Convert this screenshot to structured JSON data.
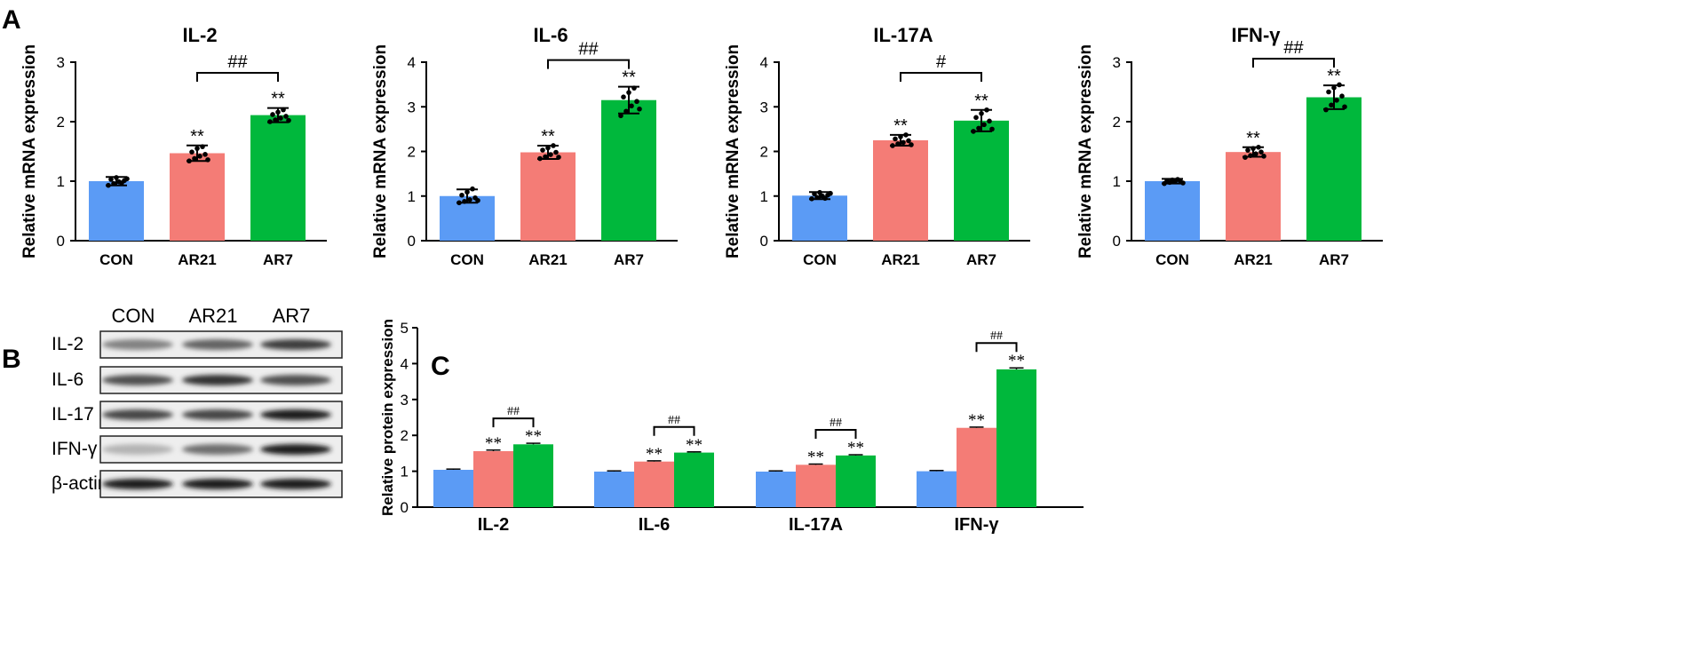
{
  "colors": {
    "CON": "#5B9BF5",
    "AR21": "#F47C76",
    "AR7": "#00B83C",
    "axis": "#000000"
  },
  "panel_labels": {
    "A": "A",
    "B": "B",
    "C": "C"
  },
  "chart_data": [
    {
      "type": "bar",
      "panel": "A",
      "title": "IL-2",
      "ylabel": "Relative mRNA expression",
      "categories": [
        "CON",
        "AR21",
        "AR7"
      ],
      "values": [
        1.0,
        1.47,
        2.11
      ],
      "errors": [
        0.07,
        0.13,
        0.12
      ],
      "ylim": [
        0,
        3
      ],
      "yticks": [
        "0",
        "1",
        "2",
        "3"
      ],
      "points": [
        [
          0.93,
          0.96,
          0.99,
          1.01,
          1.03,
          1.06,
          0.97,
          1.04
        ],
        [
          1.34,
          1.38,
          1.42,
          1.45,
          1.49,
          1.55,
          1.58,
          1.36
        ],
        [
          2.0,
          2.03,
          2.06,
          2.09,
          2.12,
          2.16,
          2.2,
          2.02
        ]
      ],
      "stars": [
        "",
        "**",
        "**"
      ],
      "bracket": {
        "from": 1,
        "to": 2,
        "label": "##"
      }
    },
    {
      "type": "bar",
      "panel": "A",
      "title": "IL-6",
      "ylabel": "Relative mRNA expression",
      "categories": [
        "CON",
        "AR21",
        "AR7"
      ],
      "values": [
        1.0,
        1.98,
        3.15
      ],
      "errors": [
        0.15,
        0.15,
        0.3
      ],
      "ylim": [
        0,
        4
      ],
      "yticks": [
        "0",
        "1",
        "2",
        "3",
        "4"
      ],
      "points": [
        [
          0.85,
          0.88,
          0.92,
          0.96,
          1.02,
          1.09,
          1.16,
          0.9
        ],
        [
          1.84,
          1.88,
          1.93,
          1.98,
          2.03,
          2.08,
          2.13,
          1.87
        ],
        [
          2.8,
          2.9,
          3.02,
          3.12,
          3.22,
          3.32,
          3.42,
          2.95
        ]
      ],
      "stars": [
        "",
        "**",
        "**"
      ],
      "bracket": {
        "from": 1,
        "to": 2,
        "label": "##"
      }
    },
    {
      "type": "bar",
      "panel": "A",
      "title": "IL-17A",
      "ylabel": "Relative mRNA expression",
      "categories": [
        "CON",
        "AR21",
        "AR7"
      ],
      "values": [
        1.01,
        2.25,
        2.69
      ],
      "errors": [
        0.08,
        0.12,
        0.24
      ],
      "ylim": [
        0,
        4
      ],
      "yticks": [
        "0",
        "1",
        "2",
        "3",
        "4"
      ],
      "points": [
        [
          0.94,
          0.97,
          1.0,
          1.02,
          1.05,
          1.08,
          0.95,
          1.06
        ],
        [
          2.13,
          2.17,
          2.2,
          2.24,
          2.28,
          2.33,
          2.37,
          2.15
        ],
        [
          2.45,
          2.52,
          2.6,
          2.68,
          2.76,
          2.85,
          2.93,
          2.5
        ]
      ],
      "stars": [
        "",
        "**",
        "**"
      ],
      "bracket": {
        "from": 1,
        "to": 2,
        "label": "#"
      }
    },
    {
      "type": "bar",
      "panel": "A",
      "title": "IFN-γ",
      "ylabel": "Relative mRNA expression",
      "categories": [
        "CON",
        "AR21",
        "AR7"
      ],
      "values": [
        1.0,
        1.49,
        2.41
      ],
      "errors": [
        0.04,
        0.08,
        0.2
      ],
      "ylim": [
        0,
        3
      ],
      "yticks": [
        "0",
        "1",
        "2",
        "3"
      ],
      "points": [
        [
          0.96,
          0.98,
          0.99,
          1.0,
          1.01,
          1.02,
          1.03,
          0.97
        ],
        [
          1.4,
          1.43,
          1.46,
          1.49,
          1.52,
          1.55,
          1.57,
          1.42
        ],
        [
          2.2,
          2.28,
          2.36,
          2.43,
          2.5,
          2.57,
          2.62,
          2.25
        ]
      ],
      "stars": [
        "",
        "**",
        "**"
      ],
      "bracket": {
        "from": 1,
        "to": 2,
        "label": "##"
      }
    },
    {
      "type": "bar",
      "panel": "C",
      "title": "",
      "ylabel": "Relative protein expression",
      "groups": [
        "IL-2",
        "IL-6",
        "IL-17A",
        "IFN-γ"
      ],
      "series": [
        {
          "name": "CON",
          "values": [
            1.04,
            0.99,
            0.99,
            1.0
          ],
          "errors": [
            0.02,
            0.02,
            0.02,
            0.02
          ]
        },
        {
          "name": "AR21",
          "values": [
            1.56,
            1.27,
            1.18,
            2.21
          ],
          "errors": [
            0.03,
            0.02,
            0.02,
            0.02
          ]
        },
        {
          "name": "AR7",
          "values": [
            1.75,
            1.52,
            1.44,
            3.84
          ],
          "errors": [
            0.03,
            0.02,
            0.02,
            0.04
          ]
        }
      ],
      "ylim": [
        0,
        5
      ],
      "yticks": [
        "0",
        "1",
        "2",
        "3",
        "4",
        "5"
      ],
      "stars": [
        "",
        "**",
        "**"
      ],
      "bracket_label": "##"
    }
  ],
  "western_blot": {
    "lanes": [
      "CON",
      "AR21",
      "AR7"
    ],
    "rows": [
      {
        "label": "IL-2",
        "intensity": [
          0.45,
          0.6,
          0.8
        ]
      },
      {
        "label": "IL-6",
        "intensity": [
          0.7,
          0.85,
          0.7
        ]
      },
      {
        "label": "IL-17",
        "intensity": [
          0.75,
          0.75,
          0.95
        ]
      },
      {
        "label": "IFN-γ",
        "intensity": [
          0.2,
          0.55,
          0.95
        ]
      },
      {
        "label": "β-actin",
        "intensity": [
          0.95,
          0.95,
          0.95
        ]
      }
    ]
  }
}
